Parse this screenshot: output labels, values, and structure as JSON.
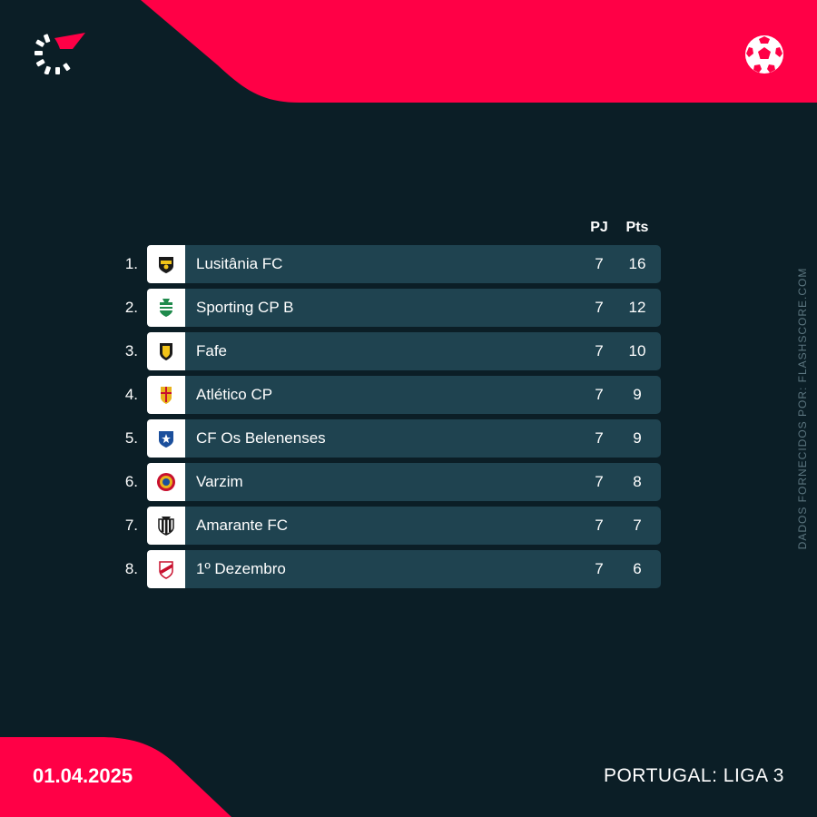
{
  "colors": {
    "brand": "#ff0046",
    "background": "#0b1e26",
    "row_bar": "#1f4350"
  },
  "header": {
    "logo_icon": "flashscore-logo-icon",
    "sport_icon": "soccer-ball-icon"
  },
  "table": {
    "col_pj": "PJ",
    "col_pts": "Pts",
    "rows": [
      {
        "rank": "1.",
        "team": "Lusitânia FC",
        "pj": "7",
        "pts": "16",
        "crest": "lusitania-crest-icon"
      },
      {
        "rank": "2.",
        "team": "Sporting CP B",
        "pj": "7",
        "pts": "12",
        "crest": "sporting-crest-icon"
      },
      {
        "rank": "3.",
        "team": "Fafe",
        "pj": "7",
        "pts": "10",
        "crest": "fafe-crest-icon"
      },
      {
        "rank": "4.",
        "team": "Atlético CP",
        "pj": "7",
        "pts": "9",
        "crest": "atletico-crest-icon"
      },
      {
        "rank": "5.",
        "team": "CF Os Belenenses",
        "pj": "7",
        "pts": "9",
        "crest": "belenenses-crest-icon"
      },
      {
        "rank": "6.",
        "team": "Varzim",
        "pj": "7",
        "pts": "8",
        "crest": "varzim-crest-icon"
      },
      {
        "rank": "7.",
        "team": "Amarante FC",
        "pj": "7",
        "pts": "7",
        "crest": "amarante-crest-icon"
      },
      {
        "rank": "8.",
        "team": "1º Dezembro",
        "pj": "7",
        "pts": "6",
        "crest": "dezembro-crest-icon"
      }
    ]
  },
  "footer": {
    "date": "01.04.2025",
    "league": "PORTUGAL: LIGA 3",
    "credit": "DADOS FORNECIDOS POR: FLASHSCORE.COM"
  }
}
